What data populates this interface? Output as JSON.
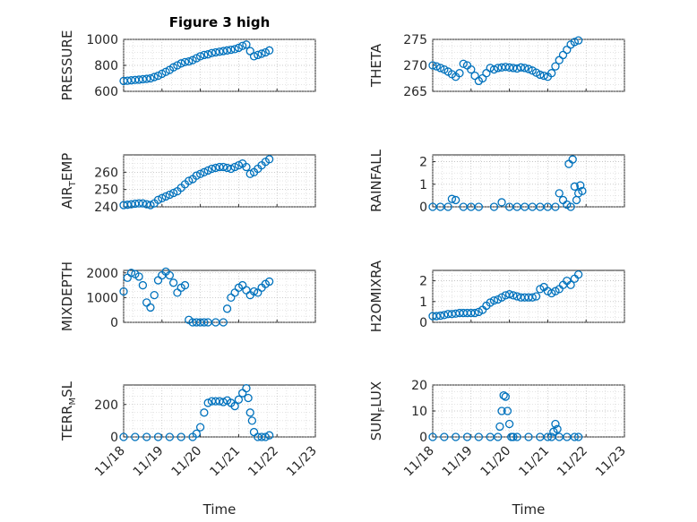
{
  "title": "Figure 3 high",
  "marker_color": "#0072BD",
  "x_axis_label": "Time",
  "x_ticks": [
    "11/18",
    "11/19",
    "11/20",
    "11/21",
    "11/22",
    "11/23"
  ],
  "chart_data": [
    {
      "type": "scatter",
      "ylabel": "PRESSURE",
      "ylim": [
        600,
        1000
      ],
      "yticks": [
        600,
        800,
        1000
      ],
      "grid": true,
      "x": [
        0,
        0.1,
        0.2,
        0.3,
        0.4,
        0.5,
        0.6,
        0.7,
        0.8,
        0.9,
        1.0,
        1.1,
        1.2,
        1.3,
        1.4,
        1.5,
        1.6,
        1.7,
        1.8,
        1.9,
        2.0,
        2.1,
        2.2,
        2.3,
        2.4,
        2.5,
        2.6,
        2.7,
        2.8,
        2.9,
        3.0,
        3.1,
        3.2,
        3.3,
        3.4,
        3.5,
        3.6,
        3.7,
        3.8
      ],
      "y": [
        680,
        682,
        685,
        688,
        690,
        693,
        696,
        700,
        710,
        720,
        735,
        750,
        765,
        785,
        800,
        815,
        825,
        830,
        840,
        855,
        870,
        880,
        885,
        895,
        900,
        905,
        910,
        915,
        920,
        925,
        935,
        950,
        960,
        910,
        870,
        880,
        890,
        900,
        915
      ]
    },
    {
      "type": "scatter",
      "ylabel": "THETA",
      "ylim": [
        265,
        275
      ],
      "yticks": [
        265,
        270,
        275
      ],
      "grid": true,
      "x": [
        0,
        0.1,
        0.2,
        0.3,
        0.4,
        0.5,
        0.6,
        0.7,
        0.8,
        0.9,
        1.0,
        1.1,
        1.2,
        1.3,
        1.4,
        1.5,
        1.6,
        1.7,
        1.8,
        1.9,
        2.0,
        2.1,
        2.2,
        2.3,
        2.4,
        2.5,
        2.6,
        2.7,
        2.8,
        2.9,
        3.0,
        3.1,
        3.2,
        3.3,
        3.4,
        3.5,
        3.6,
        3.7,
        3.8
      ],
      "y": [
        270,
        269.8,
        269.5,
        269.2,
        268.8,
        268.3,
        267.8,
        268.5,
        270.3,
        270.0,
        269.2,
        268.0,
        267.0,
        267.5,
        268.5,
        269.5,
        269.2,
        269.5,
        269.6,
        269.7,
        269.6,
        269.5,
        269.4,
        269.6,
        269.5,
        269.3,
        269.0,
        268.6,
        268.2,
        268.0,
        267.8,
        268.5,
        269.8,
        271.0,
        272.0,
        273.0,
        274.0,
        274.5,
        274.8
      ]
    },
    {
      "type": "scatter",
      "ylabel": "AIR_TEMP",
      "ylim": [
        240,
        270
      ],
      "yticks": [
        240,
        250,
        260
      ],
      "grid": true,
      "x": [
        0,
        0.1,
        0.2,
        0.3,
        0.4,
        0.5,
        0.6,
        0.7,
        0.8,
        0.9,
        1.0,
        1.1,
        1.2,
        1.3,
        1.4,
        1.5,
        1.6,
        1.7,
        1.8,
        1.9,
        2.0,
        2.1,
        2.2,
        2.3,
        2.4,
        2.5,
        2.6,
        2.7,
        2.8,
        2.9,
        3.0,
        3.1,
        3.2,
        3.3,
        3.4,
        3.5,
        3.6,
        3.7,
        3.8
      ],
      "y": [
        241,
        241.2,
        241.5,
        241.8,
        242,
        242,
        241.5,
        241.0,
        242,
        244,
        245,
        246,
        247,
        248,
        249,
        251,
        253,
        255,
        256,
        258,
        259,
        260,
        261,
        262,
        262.5,
        263,
        263,
        262.5,
        262,
        263,
        264,
        265,
        263,
        259,
        260,
        262,
        264,
        266,
        267.5
      ]
    },
    {
      "type": "scatter",
      "ylabel": "RAINFALL",
      "ylim": [
        0,
        2.3
      ],
      "yticks": [
        0,
        1,
        2
      ],
      "grid": true,
      "x": [
        0,
        0.2,
        0.4,
        0.5,
        0.6,
        0.8,
        1.0,
        1.2,
        1.6,
        1.8,
        2.0,
        2.2,
        2.4,
        2.6,
        2.8,
        3.0,
        3.2,
        3.3,
        3.4,
        3.5,
        3.55,
        3.6,
        3.65,
        3.7,
        3.75,
        3.8,
        3.85,
        3.9
      ],
      "y": [
        0,
        0,
        0,
        0.35,
        0.3,
        0,
        0,
        0,
        0,
        0.2,
        0,
        0,
        0,
        0,
        0,
        0,
        0,
        0.6,
        0.3,
        0.1,
        1.9,
        0,
        2.1,
        0.9,
        0.3,
        0.6,
        0.95,
        0.7
      ]
    },
    {
      "type": "scatter",
      "ylabel": "MIXDEPTH",
      "ylim": [
        0,
        2100
      ],
      "yticks": [
        0,
        1000,
        2000
      ],
      "grid": true,
      "x": [
        0,
        0.1,
        0.2,
        0.3,
        0.4,
        0.5,
        0.6,
        0.7,
        0.8,
        0.9,
        1.0,
        1.1,
        1.2,
        1.3,
        1.4,
        1.5,
        1.6,
        1.7,
        1.8,
        1.9,
        2.0,
        2.1,
        2.2,
        2.4,
        2.6,
        2.7,
        2.8,
        2.9,
        3.0,
        3.1,
        3.2,
        3.3,
        3.4,
        3.5,
        3.6,
        3.7,
        3.8
      ],
      "y": [
        1250,
        1800,
        2000,
        1950,
        1850,
        1500,
        800,
        600,
        1100,
        1700,
        1900,
        2050,
        1900,
        1600,
        1200,
        1400,
        1500,
        100,
        0,
        0,
        0,
        0,
        0,
        0,
        0,
        550,
        1000,
        1200,
        1400,
        1500,
        1300,
        1100,
        1250,
        1200,
        1400,
        1550,
        1650
      ]
    },
    {
      "type": "scatter",
      "ylabel": "H2OMIXRA",
      "ylim": [
        0,
        2.5
      ],
      "yticks": [
        0,
        1,
        2
      ],
      "grid": true,
      "x": [
        0,
        0.1,
        0.2,
        0.3,
        0.4,
        0.5,
        0.6,
        0.7,
        0.8,
        0.9,
        1.0,
        1.1,
        1.2,
        1.3,
        1.4,
        1.5,
        1.6,
        1.7,
        1.8,
        1.9,
        2.0,
        2.1,
        2.2,
        2.3,
        2.4,
        2.5,
        2.6,
        2.7,
        2.8,
        2.9,
        3.0,
        3.1,
        3.2,
        3.3,
        3.4,
        3.5,
        3.6,
        3.7,
        3.8
      ],
      "y": [
        0.3,
        0.3,
        0.32,
        0.35,
        0.4,
        0.4,
        0.42,
        0.45,
        0.45,
        0.45,
        0.45,
        0.45,
        0.5,
        0.6,
        0.8,
        0.95,
        1.05,
        1.1,
        1.2,
        1.3,
        1.35,
        1.3,
        1.25,
        1.2,
        1.2,
        1.2,
        1.2,
        1.25,
        1.6,
        1.7,
        1.5,
        1.4,
        1.5,
        1.6,
        1.8,
        2.0,
        1.8,
        2.1,
        2.3
      ]
    },
    {
      "type": "scatter",
      "ylabel": "TERR_MSL",
      "ylim": [
        0,
        320
      ],
      "yticks": [
        0,
        200
      ],
      "grid": true,
      "x": [
        0,
        0.3,
        0.6,
        0.9,
        1.2,
        1.5,
        1.8,
        1.9,
        2.0,
        2.1,
        2.2,
        2.3,
        2.4,
        2.5,
        2.6,
        2.7,
        2.8,
        2.9,
        3.0,
        3.1,
        3.2,
        3.25,
        3.3,
        3.35,
        3.4,
        3.5,
        3.6,
        3.7,
        3.8
      ],
      "y": [
        0,
        0,
        0,
        0,
        0,
        0,
        0,
        20,
        60,
        150,
        210,
        220,
        220,
        220,
        215,
        225,
        210,
        190,
        230,
        270,
        300,
        240,
        150,
        100,
        30,
        0,
        0,
        0,
        10
      ]
    },
    {
      "type": "scatter",
      "ylabel": "SUN_FLUX",
      "ylim": [
        0,
        20
      ],
      "yticks": [
        0,
        10,
        20
      ],
      "grid": true,
      "x": [
        0,
        0.3,
        0.6,
        0.9,
        1.2,
        1.5,
        1.7,
        1.75,
        1.8,
        1.85,
        1.9,
        1.95,
        2.0,
        2.05,
        2.1,
        2.2,
        2.5,
        2.8,
        3.0,
        3.1,
        3.15,
        3.2,
        3.25,
        3.3,
        3.5,
        3.7,
        3.8
      ],
      "y": [
        0,
        0,
        0,
        0,
        0,
        0,
        0,
        4,
        10,
        16,
        15.5,
        10,
        5,
        0,
        0,
        0,
        0,
        0,
        0,
        0,
        2,
        5,
        3,
        0,
        0,
        0,
        0
      ]
    }
  ]
}
